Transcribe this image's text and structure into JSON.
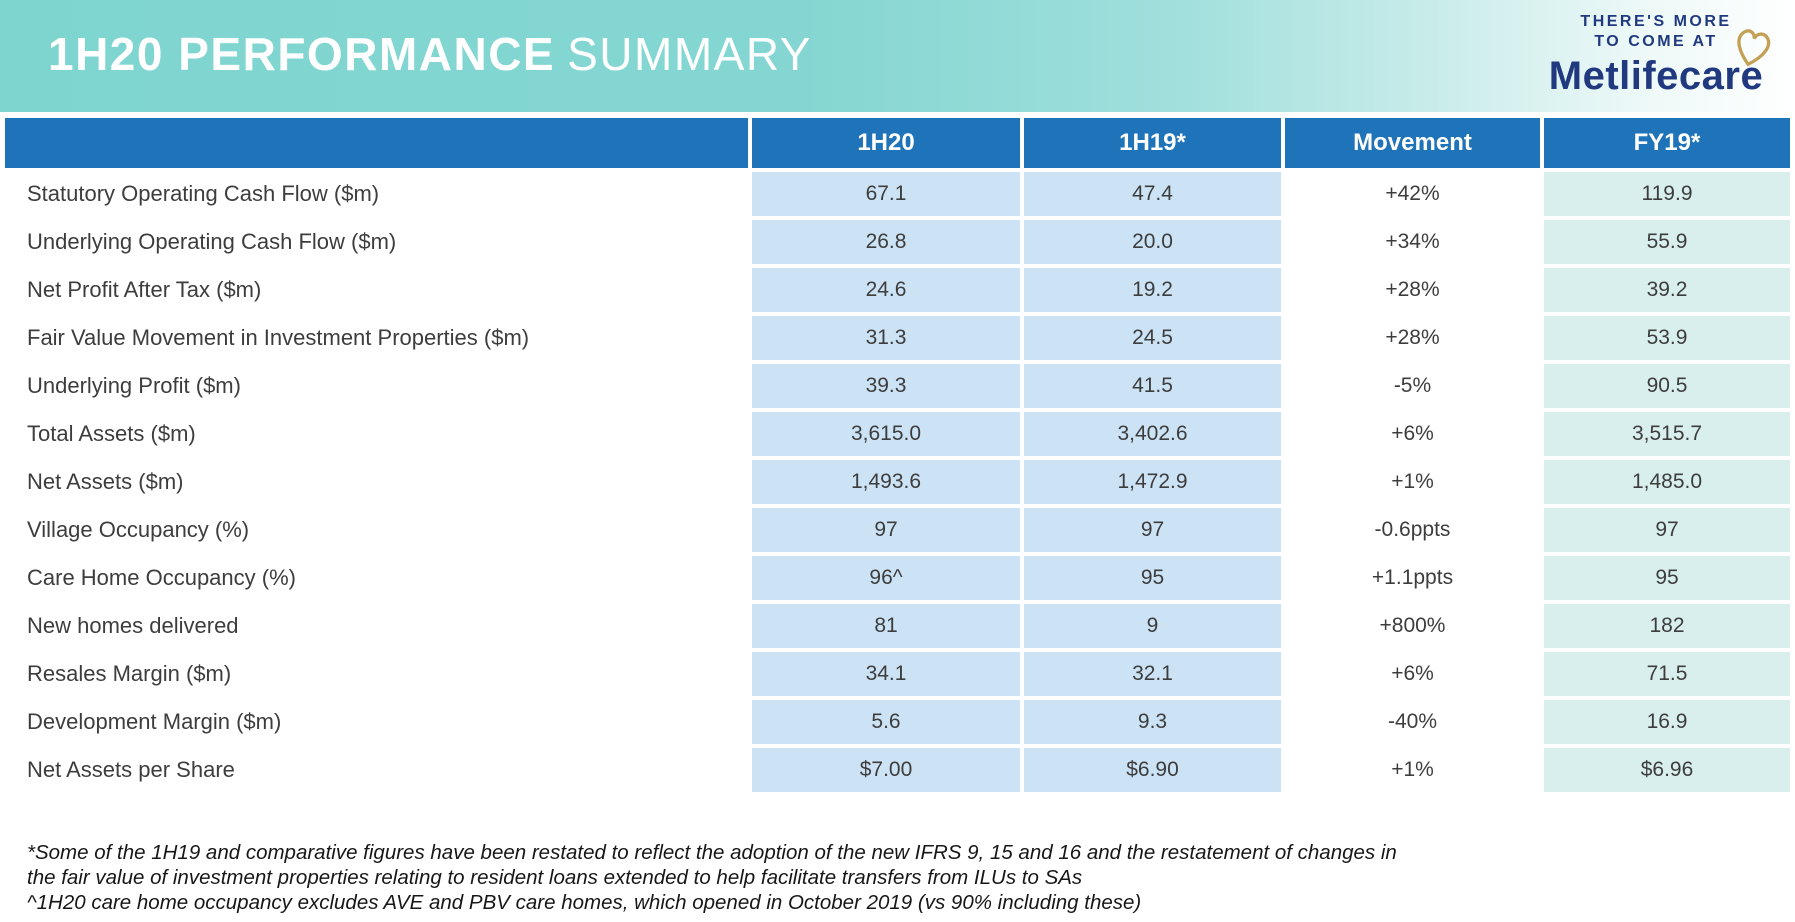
{
  "header": {
    "title_bold": "1H20 PERFORMANCE",
    "title_light": "SUMMARY"
  },
  "logo": {
    "tagline_line1": "THERE'S MORE",
    "tagline_line2": "TO COME AT",
    "brand": "Metlifecare",
    "heart_icon": "gold-heart-outline-icon"
  },
  "colors": {
    "band_teal": "#7ed5d0",
    "header_blue": "#1f73b8",
    "cell_blue": "#cce3f6",
    "cell_teal": "#d9efed",
    "brand_navy": "#20397f",
    "brand_gold": "#c3a054",
    "text_dark": "#3d3d3d"
  },
  "table": {
    "columns": [
      "",
      "1H20",
      "1H19*",
      "Movement",
      "FY19*"
    ],
    "rows": [
      {
        "label": "Statutory Operating Cash Flow ($m)",
        "h1_20": "67.1",
        "h1_19": "47.4",
        "movement": "+42%",
        "fy19": "119.9"
      },
      {
        "label": "Underlying Operating Cash Flow ($m)",
        "h1_20": "26.8",
        "h1_19": "20.0",
        "movement": "+34%",
        "fy19": "55.9"
      },
      {
        "label": "Net Profit After Tax ($m)",
        "h1_20": "24.6",
        "h1_19": "19.2",
        "movement": "+28%",
        "fy19": "39.2"
      },
      {
        "label": "Fair Value Movement in Investment Properties ($m)",
        "h1_20": "31.3",
        "h1_19": "24.5",
        "movement": "+28%",
        "fy19": "53.9"
      },
      {
        "label": "Underlying Profit ($m)",
        "h1_20": "39.3",
        "h1_19": "41.5",
        "movement": "-5%",
        "fy19": "90.5"
      },
      {
        "label": "Total Assets ($m)",
        "h1_20": "3,615.0",
        "h1_19": "3,402.6",
        "movement": "+6%",
        "fy19": "3,515.7"
      },
      {
        "label": "Net Assets ($m)",
        "h1_20": "1,493.6",
        "h1_19": "1,472.9",
        "movement": "+1%",
        "fy19": "1,485.0"
      },
      {
        "label": "Village Occupancy (%)",
        "h1_20": "97",
        "h1_19": "97",
        "movement": "-0.6ppts",
        "fy19": "97"
      },
      {
        "label": "Care Home Occupancy (%)",
        "h1_20": "96^",
        "h1_19": "95",
        "movement": "+1.1ppts",
        "fy19": "95"
      },
      {
        "label": "New homes delivered",
        "h1_20": "81",
        "h1_19": "9",
        "movement": "+800%",
        "fy19": "182"
      },
      {
        "label": "Resales Margin ($m)",
        "h1_20": "34.1",
        "h1_19": "32.1",
        "movement": "+6%",
        "fy19": "71.5"
      },
      {
        "label": "Development Margin ($m)",
        "h1_20": "5.6",
        "h1_19": "9.3",
        "movement": "-40%",
        "fy19": "16.9"
      },
      {
        "label": "Net Assets per Share",
        "h1_20": "$7.00",
        "h1_19": "$6.90",
        "movement": "+1%",
        "fy19": "$6.96"
      }
    ]
  },
  "footnotes": [
    "*Some of the 1H19 and comparative figures have been restated to reflect the adoption of the new IFRS 9, 15 and 16 and the restatement of changes in",
    "the fair value  of investment properties relating to resident loans extended to help facilitate transfers from ILUs to SAs",
    "^1H20 care home occupancy excludes AVE and PBV care homes, which opened in October 2019 (vs 90% including these)"
  ]
}
